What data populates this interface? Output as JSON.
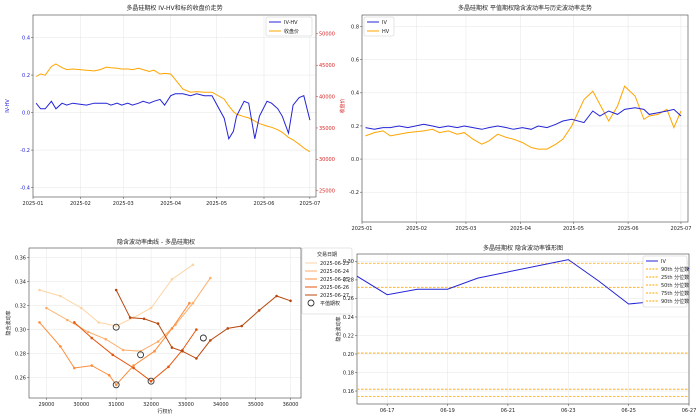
{
  "chart_data": [
    {
      "type": "line",
      "title": "多晶硅期权 IV-HV和标的收盘价走势",
      "ylabel": "IV-HV",
      "ylabel_right": "收盘价",
      "x_ticks": [
        "2025-01",
        "2025-02",
        "2025-03",
        "2025-04",
        "2025-05",
        "2025-06",
        "2025-07"
      ],
      "xlim": [
        "2025-01-01",
        "2025-07-05"
      ],
      "ylim": [
        -0.45,
        0.52
      ],
      "yticks": [
        -0.4,
        -0.2,
        0.0,
        0.2,
        0.4
      ],
      "ytick_labels": [
        "-0.4",
        "-0.2",
        "0.0",
        "0.2",
        "0.4"
      ],
      "ylim_right": [
        24000,
        53000
      ],
      "yticks_right": [
        25000,
        30000,
        35000,
        40000,
        45000,
        50000
      ],
      "ytick_labels_right": [
        "25000",
        "30000",
        "35000",
        "40000",
        "45000",
        "50000"
      ],
      "right_axis_color": "#d62728",
      "grid": true,
      "legend": "top-right",
      "series": [
        {
          "name": "IV-HV",
          "color": "#2424d6",
          "axis": "left",
          "x": [
            "2025-01-03",
            "2025-01-06",
            "2025-01-09",
            "2025-01-13",
            "2025-01-16",
            "2025-01-20",
            "2025-01-23",
            "2025-01-27",
            "2025-02-05",
            "2025-02-10",
            "2025-02-14",
            "2025-02-18",
            "2025-02-21",
            "2025-02-25",
            "2025-02-28",
            "2025-03-04",
            "2025-03-07",
            "2025-03-11",
            "2025-03-14",
            "2025-03-18",
            "2025-03-21",
            "2025-03-25",
            "2025-03-28",
            "2025-04-01",
            "2025-04-04",
            "2025-04-09",
            "2025-04-14",
            "2025-04-18",
            "2025-04-23",
            "2025-04-28",
            "2025-05-06",
            "2025-05-09",
            "2025-05-12",
            "2025-05-14",
            "2025-05-19",
            "2025-05-22",
            "2025-05-26",
            "2025-05-29",
            "2025-06-03",
            "2025-06-06",
            "2025-06-10",
            "2025-06-13",
            "2025-06-17",
            "2025-06-20",
            "2025-06-24",
            "2025-06-27",
            "2025-07-01"
          ],
          "values": [
            0.05,
            0.02,
            0.02,
            0.06,
            0.02,
            0.05,
            0.04,
            0.05,
            0.04,
            0.05,
            0.05,
            0.05,
            0.04,
            0.05,
            0.04,
            0.05,
            0.04,
            0.05,
            0.06,
            0.05,
            0.06,
            0.07,
            0.04,
            0.09,
            0.1,
            0.1,
            0.09,
            0.1,
            0.09,
            0.09,
            -0.03,
            -0.14,
            -0.1,
            -0.02,
            0.06,
            0.05,
            -0.14,
            -0.02,
            0.06,
            0.05,
            0.02,
            -0.02,
            -0.11,
            0.04,
            0.08,
            0.09,
            -0.04
          ]
        },
        {
          "name": "收盘价",
          "color": "#ffa500",
          "axis": "right",
          "x": [
            "2025-01-03",
            "2025-01-06",
            "2025-01-09",
            "2025-01-13",
            "2025-01-16",
            "2025-01-20",
            "2025-01-23",
            "2025-01-27",
            "2025-02-05",
            "2025-02-10",
            "2025-02-14",
            "2025-02-18",
            "2025-02-21",
            "2025-02-25",
            "2025-02-28",
            "2025-03-04",
            "2025-03-07",
            "2025-03-11",
            "2025-03-14",
            "2025-03-18",
            "2025-03-21",
            "2025-03-25",
            "2025-03-28",
            "2025-04-01",
            "2025-04-04",
            "2025-04-09",
            "2025-04-14",
            "2025-04-18",
            "2025-04-23",
            "2025-04-28",
            "2025-05-06",
            "2025-05-09",
            "2025-05-12",
            "2025-05-14",
            "2025-05-19",
            "2025-05-22",
            "2025-05-26",
            "2025-05-29",
            "2025-06-03",
            "2025-06-06",
            "2025-06-10",
            "2025-06-13",
            "2025-06-17",
            "2025-06-20",
            "2025-06-24",
            "2025-06-27",
            "2025-07-01"
          ],
          "values": [
            43200,
            43600,
            43400,
            44800,
            45200,
            44600,
            44300,
            44400,
            44200,
            44100,
            44300,
            44700,
            44600,
            44500,
            44400,
            44400,
            44300,
            44500,
            44300,
            44000,
            44200,
            43600,
            43700,
            43600,
            42700,
            41200,
            40700,
            40800,
            40700,
            40700,
            39600,
            38500,
            37600,
            37200,
            36800,
            36600,
            36100,
            35700,
            35300,
            35100,
            34700,
            34300,
            33500,
            33100,
            32400,
            31800,
            31200
          ]
        }
      ]
    },
    {
      "type": "line",
      "title": "多晶硅期权 平值期权隐含波动率与历史波动率走势",
      "x_ticks": [
        "2025-01",
        "2025-02",
        "2025-03",
        "2025-04",
        "2025-05",
        "2025-06",
        "2025-07"
      ],
      "xlim": [
        "2025-01-01",
        "2025-07-05"
      ],
      "ylim": [
        -0.38,
        0.87
      ],
      "yticks": [
        -0.2,
        0.0,
        0.2,
        0.4,
        0.6,
        0.8
      ],
      "ytick_labels": [
        "-0.2",
        "0.0",
        "0.2",
        "0.4",
        "0.6",
        "0.8"
      ],
      "grid": true,
      "legend": "top-left",
      "series": [
        {
          "name": "IV",
          "color": "#2424d6",
          "x": [
            "2025-01-03",
            "2025-01-08",
            "2025-01-13",
            "2025-01-17",
            "2025-01-22",
            "2025-01-27",
            "2025-02-05",
            "2025-02-10",
            "2025-02-14",
            "2025-02-19",
            "2025-02-24",
            "2025-02-28",
            "2025-03-05",
            "2025-03-10",
            "2025-03-14",
            "2025-03-19",
            "2025-03-24",
            "2025-03-28",
            "2025-04-02",
            "2025-04-07",
            "2025-04-11",
            "2025-04-16",
            "2025-04-21",
            "2025-04-25",
            "2025-04-30",
            "2025-05-07",
            "2025-05-12",
            "2025-05-16",
            "2025-05-21",
            "2025-05-26",
            "2025-05-30",
            "2025-06-05",
            "2025-06-10",
            "2025-06-13",
            "2025-06-18",
            "2025-06-23",
            "2025-06-27",
            "2025-07-01"
          ],
          "values": [
            0.19,
            0.18,
            0.19,
            0.19,
            0.2,
            0.19,
            0.21,
            0.2,
            0.19,
            0.2,
            0.19,
            0.2,
            0.19,
            0.18,
            0.19,
            0.2,
            0.19,
            0.18,
            0.19,
            0.18,
            0.2,
            0.19,
            0.21,
            0.23,
            0.24,
            0.22,
            0.29,
            0.26,
            0.29,
            0.27,
            0.3,
            0.31,
            0.3,
            0.27,
            0.28,
            0.29,
            0.3,
            0.26
          ]
        },
        {
          "name": "HV",
          "color": "#ffa500",
          "x": [
            "2025-01-03",
            "2025-01-08",
            "2025-01-13",
            "2025-01-17",
            "2025-01-22",
            "2025-01-27",
            "2025-02-05",
            "2025-02-10",
            "2025-02-14",
            "2025-02-19",
            "2025-02-24",
            "2025-02-28",
            "2025-03-05",
            "2025-03-10",
            "2025-03-14",
            "2025-03-19",
            "2025-03-24",
            "2025-03-28",
            "2025-04-02",
            "2025-04-07",
            "2025-04-11",
            "2025-04-16",
            "2025-04-21",
            "2025-04-25",
            "2025-04-30",
            "2025-05-07",
            "2025-05-12",
            "2025-05-16",
            "2025-05-21",
            "2025-05-26",
            "2025-05-30",
            "2025-06-05",
            "2025-06-10",
            "2025-06-13",
            "2025-06-18",
            "2025-06-23",
            "2025-06-27",
            "2025-07-01"
          ],
          "values": [
            0.14,
            0.16,
            0.17,
            0.14,
            0.15,
            0.16,
            0.17,
            0.18,
            0.16,
            0.17,
            0.15,
            0.16,
            0.12,
            0.09,
            0.11,
            0.15,
            0.13,
            0.12,
            0.1,
            0.07,
            0.06,
            0.06,
            0.09,
            0.12,
            0.2,
            0.36,
            0.41,
            0.33,
            0.23,
            0.32,
            0.44,
            0.38,
            0.24,
            0.26,
            0.27,
            0.3,
            0.19,
            0.29
          ]
        }
      ]
    },
    {
      "type": "line",
      "title": "隐含波动率曲线 - 多晶硅期权",
      "xlabel": "行权价",
      "ylabel": "隐含波动率",
      "xlim": [
        28500,
        36300
      ],
      "ylim": [
        0.243,
        0.368
      ],
      "xticks": [
        29000,
        30000,
        31000,
        32000,
        33000,
        34000,
        35000,
        36000
      ],
      "xtick_labels": [
        "29000",
        "30000",
        "31000",
        "32000",
        "33000",
        "34000",
        "35000",
        "36000"
      ],
      "yticks": [
        0.26,
        0.28,
        0.3,
        0.32,
        0.34,
        0.36
      ],
      "ytick_labels": [
        "0.26",
        "0.28",
        "0.30",
        "0.32",
        "0.34",
        "0.36"
      ],
      "grid": true,
      "legend": "top-right",
      "legend_title": "交易日期",
      "series": [
        {
          "name": "2025-06-23",
          "color": "#fdd4a5",
          "x": [
            28800,
            29400,
            30000,
            30500,
            31000,
            31500,
            32000,
            32600,
            33200
          ],
          "values": [
            0.333,
            0.328,
            0.318,
            0.306,
            0.303,
            0.31,
            0.318,
            0.342,
            0.354
          ]
        },
        {
          "name": "2025-06-24",
          "color": "#fdae6b",
          "x": [
            29000,
            29600,
            30200,
            30700,
            31200,
            31700,
            32200,
            32700,
            33200,
            33700
          ],
          "values": [
            0.318,
            0.308,
            0.298,
            0.292,
            0.283,
            0.282,
            0.29,
            0.304,
            0.322,
            0.343
          ]
        },
        {
          "name": "2025-06-25",
          "color": "#fd8d3c",
          "x": [
            28800,
            29400,
            29800,
            30300,
            30800,
            31000,
            31500,
            32100,
            32600,
            33100
          ],
          "values": [
            0.306,
            0.286,
            0.268,
            0.27,
            0.262,
            0.254,
            0.27,
            0.282,
            0.301,
            0.322
          ]
        },
        {
          "name": "2025-06-26",
          "color": "#e6550d",
          "x": [
            29800,
            30300,
            30900,
            31500,
            32000,
            32500,
            32900,
            33300
          ],
          "values": [
            0.306,
            0.293,
            0.279,
            0.268,
            0.257,
            0.269,
            0.283,
            0.3
          ]
        },
        {
          "name": "2025-06-27",
          "color": "#b8470e",
          "x": [
            31000,
            31400,
            31800,
            32200,
            32600,
            32900,
            33300,
            33700,
            34200,
            34600,
            35100,
            35600,
            36000
          ],
          "values": [
            0.333,
            0.31,
            0.309,
            0.305,
            0.285,
            0.282,
            0.276,
            0.291,
            0.301,
            0.303,
            0.316,
            0.328,
            0.324
          ]
        }
      ],
      "atm_marker_label": "平值期权",
      "atm_points": [
        {
          "x": 31000,
          "y": 0.302
        },
        {
          "x": 31000,
          "y": 0.254
        },
        {
          "x": 31700,
          "y": 0.279
        },
        {
          "x": 32000,
          "y": 0.257
        },
        {
          "x": 33500,
          "y": 0.293
        }
      ]
    },
    {
      "type": "line",
      "title": "多晶硅期权 隐含波动率锥形图",
      "ylabel": "隐含波动率",
      "x_ticks": [
        "06-17",
        "06-19",
        "06-21",
        "06-23",
        "06-25",
        "06-27"
      ],
      "xlim": [
        "2025-06-16",
        "2025-06-27"
      ],
      "ylim": [
        0.146,
        0.308
      ],
      "yticks": [
        0.16,
        0.18,
        0.2,
        0.22,
        0.24,
        0.26,
        0.28,
        0.3
      ],
      "ytick_labels": [
        "0.16",
        "0.18",
        "0.20",
        "0.22",
        "0.24",
        "0.26",
        "0.28",
        "0.30"
      ],
      "grid": true,
      "legend": "top-right",
      "series": [
        {
          "name": "IV",
          "color": "#2424d6",
          "x": [
            "2025-06-16",
            "2025-06-17",
            "2025-06-18",
            "2025-06-19",
            "2025-06-20",
            "2025-06-23",
            "2025-06-24",
            "2025-06-25",
            "2025-06-26",
            "2025-06-27"
          ],
          "values": [
            0.284,
            0.264,
            0.27,
            0.27,
            0.282,
            0.302,
            0.279,
            0.254,
            0.257,
            0.293
          ]
        }
      ],
      "percentile_lines": [
        {
          "name": "90th 分位数",
          "value": 0.298
        },
        {
          "name": "25th 分位数",
          "value": 0.272
        },
        {
          "name": "50th 分位数",
          "value": 0.201
        },
        {
          "name": "75th 分位数",
          "value": 0.162
        },
        {
          "name": "90th 分位数",
          "value": 0.154
        }
      ],
      "percentile_color": "#ffa500"
    }
  ]
}
